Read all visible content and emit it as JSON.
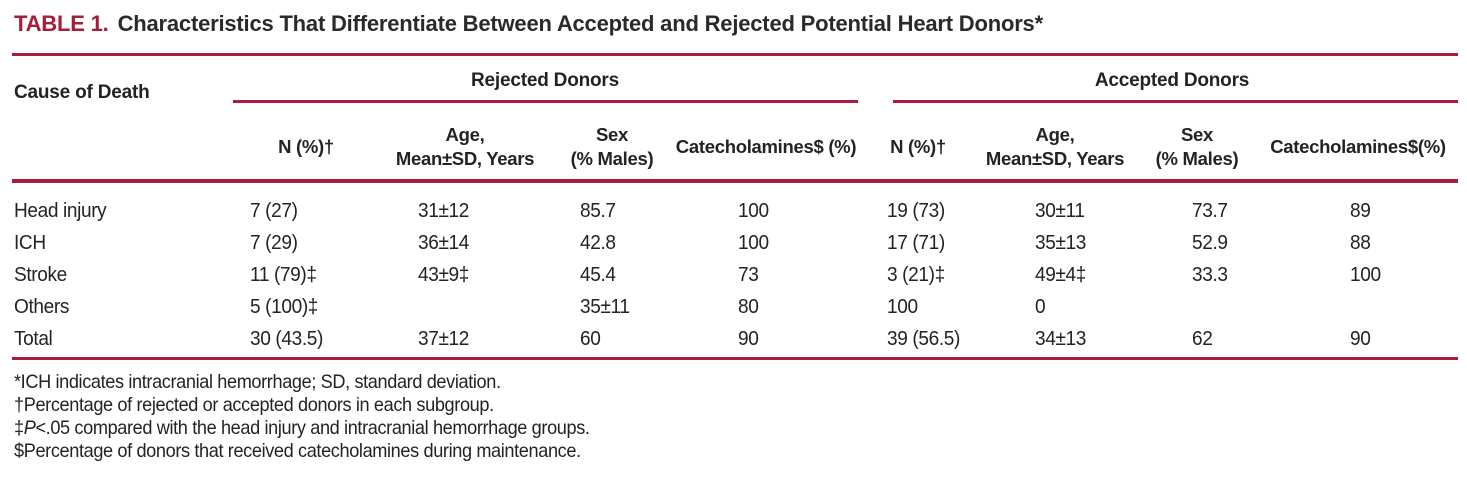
{
  "colors": {
    "accent": "#a41e3c",
    "text": "#262223"
  },
  "title": {
    "label": "TABLE 1.",
    "text": "Characteristics That Differentiate Between Accepted and Rejected Potential Heart Donors*"
  },
  "table": {
    "row_header": "Cause of Death",
    "groups": [
      {
        "label": "Rejected Donors"
      },
      {
        "label": "Accepted Donors"
      }
    ],
    "columns": [
      {
        "line1": "N (%)†",
        "line2": ""
      },
      {
        "line1": "Age,",
        "line2": "Mean±SD, Years"
      },
      {
        "line1": "Sex",
        "line2": "(% Males)"
      },
      {
        "line1": "Catecholamines$ (%)",
        "line2": ""
      },
      {
        "line1": "N (%)†",
        "line2": ""
      },
      {
        "line1": "Age,",
        "line2": "Mean±SD, Years"
      },
      {
        "line1": "Sex",
        "line2": "(% Males)"
      },
      {
        "line1": "Catecholamines$(%)",
        "line2": ""
      }
    ],
    "rows": [
      {
        "cells": [
          "Head injury",
          "7 (27)",
          "31±12",
          "85.7",
          "100",
          "19 (73)",
          "30±11",
          "73.7",
          "89"
        ]
      },
      {
        "cells": [
          "ICH",
          "7 (29)",
          "36±14",
          "42.8",
          "100",
          "17 (71)",
          "35±13",
          "52.9",
          "88"
        ]
      },
      {
        "cells": [
          "Stroke",
          "11 (79)‡",
          "43±9‡",
          "45.4",
          "73",
          "3 (21)‡",
          "49±4‡",
          "33.3",
          "100"
        ]
      },
      {
        "cells": [
          "Others",
          "5 (100)‡",
          "",
          "35±11",
          "80",
          "100",
          "0",
          "",
          ""
        ]
      },
      {
        "cells": [
          "Total",
          "30 (43.5)",
          "37±12",
          "60",
          "90",
          "39 (56.5)",
          "34±13",
          "62",
          "90"
        ]
      }
    ],
    "footnotes": [
      {
        "pre": "*ICH indicates intracranial hemorrhage; SD, standard deviation.",
        "italic": "",
        "post": ""
      },
      {
        "pre": "†Percentage of rejected or accepted donors in each subgroup.",
        "italic": "",
        "post": ""
      },
      {
        "pre": "‡",
        "italic": "P",
        "post": "<.05 compared with the head injury and intracranial hemorrhage groups."
      },
      {
        "pre": "$Percentage of donors that received catecholamines during maintenance.",
        "italic": "",
        "post": ""
      }
    ]
  }
}
